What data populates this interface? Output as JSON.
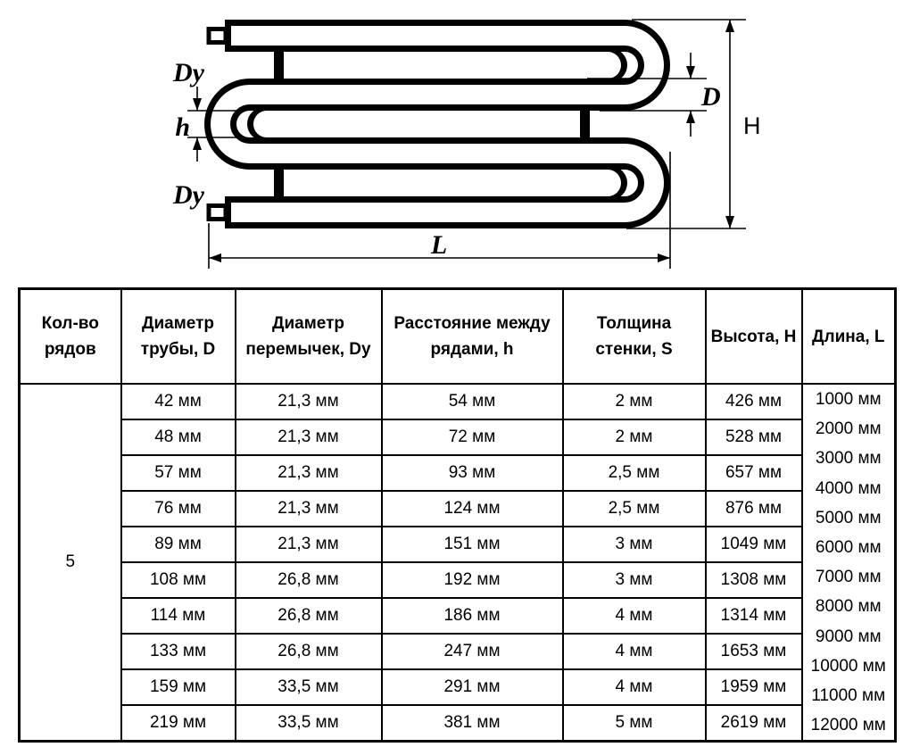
{
  "diagram": {
    "labels": {
      "dy_top": "Dy",
      "dy_bottom": "Dy",
      "row_spacing": "h",
      "tube_diameter": "D",
      "height": "H",
      "length": "L"
    }
  },
  "table": {
    "headers": [
      [
        "Кол-во",
        "рядов"
      ],
      [
        "Диаметр",
        "трубы, D"
      ],
      [
        "Диаметр",
        "перемычек, Dy"
      ],
      [
        "Расстояние между",
        "рядами, h"
      ],
      [
        "Толщина",
        "стенки, S"
      ],
      [
        "Высота, H"
      ],
      [
        "Длина, L"
      ]
    ],
    "rows_count": "5",
    "rows": [
      [
        "42 мм",
        "21,3 мм",
        "54 мм",
        "2 мм",
        "426 мм"
      ],
      [
        "48 мм",
        "21,3 мм",
        "72 мм",
        "2 мм",
        "528 мм"
      ],
      [
        "57 мм",
        "21,3 мм",
        "93 мм",
        "2,5 мм",
        "657 мм"
      ],
      [
        "76 мм",
        "21,3 мм",
        "124 мм",
        "2,5 мм",
        "876 мм"
      ],
      [
        "89 мм",
        "21,3 мм",
        "151 мм",
        "3 мм",
        "1049 мм"
      ],
      [
        "108 мм",
        "26,8 мм",
        "192 мм",
        "3 мм",
        "1308 мм"
      ],
      [
        "114 мм",
        "26,8 мм",
        "186 мм",
        "4 мм",
        "1314 мм"
      ],
      [
        "133 мм",
        "26,8 мм",
        "247 мм",
        "4 мм",
        "1653 мм"
      ],
      [
        "159 мм",
        "33,5 мм",
        "291 мм",
        "4 мм",
        "1959 мм"
      ],
      [
        "219 мм",
        "33,5 мм",
        "381 мм",
        "5 мм",
        "2619 мм"
      ]
    ],
    "lengths": [
      "1000 мм",
      "2000 мм",
      "3000 мм",
      "4000 мм",
      "5000 мм",
      "6000 мм",
      "7000 мм",
      "8000 мм",
      "9000 мм",
      "10000 мм",
      "11000 мм",
      "12000 мм"
    ]
  }
}
